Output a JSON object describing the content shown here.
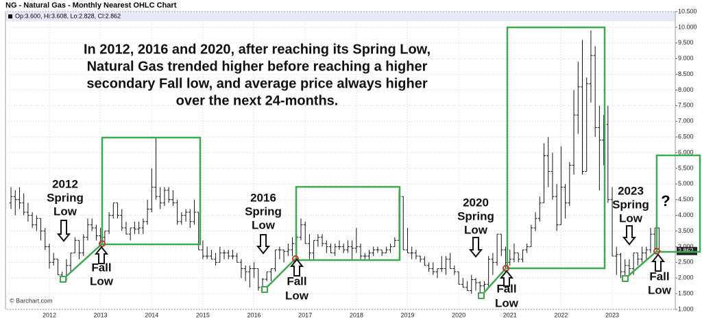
{
  "chart_data": {
    "type": "ohlc",
    "title": "NG - Natural Gas - Monthly Nearest OHLC Chart",
    "readout": "Op:3.600, Hi:3.608, Lo:2.828, Cl:2.862",
    "watermark": "© Barchart.com",
    "color": "#111111",
    "grid": true,
    "categories": [
      null,
      null,
      null,
      null,
      null,
      null,
      null,
      null,
      null,
      "2012",
      null,
      null,
      null,
      null,
      null,
      null,
      null,
      null,
      null,
      null,
      null,
      "2013",
      null,
      null,
      null,
      null,
      null,
      null,
      null,
      null,
      null,
      null,
      null,
      "2014",
      null,
      null,
      null,
      null,
      null,
      null,
      null,
      null,
      null,
      null,
      null,
      "2015",
      null,
      null,
      null,
      null,
      null,
      null,
      null,
      null,
      null,
      null,
      null,
      "2016",
      null,
      null,
      null,
      null,
      null,
      null,
      null,
      null,
      null,
      null,
      null,
      "2017",
      null,
      null,
      null,
      null,
      null,
      null,
      null,
      null,
      null,
      null,
      null,
      "2018",
      null,
      null,
      null,
      null,
      null,
      null,
      null,
      null,
      null,
      null,
      null,
      "2019",
      null,
      null,
      null,
      null,
      null,
      null,
      null,
      null,
      null,
      null,
      null,
      "2020",
      null,
      null,
      null,
      null,
      null,
      null,
      null,
      null,
      null,
      null,
      null,
      "2021",
      null,
      null,
      null,
      null,
      null,
      null,
      null,
      null,
      null,
      null,
      null,
      "2022",
      null,
      null,
      null,
      null,
      null,
      null,
      null,
      null,
      null,
      null,
      null,
      "2023",
      null,
      null,
      null,
      null,
      null,
      null,
      null,
      null,
      null,
      null,
      null
    ],
    "open": [
      4.4,
      4.6,
      4.5,
      4.4,
      4.1,
      4.0,
      3.7,
      3.9,
      3.5,
      3.0,
      2.5,
      2.6,
      2.1,
      1.95,
      2.4,
      2.8,
      3.2,
      2.8,
      3.3,
      3.7,
      3.6,
      3.35,
      3.3,
      3.5,
      4.0,
      4.4,
      4.0,
      3.6,
      3.4,
      3.6,
      3.56,
      3.6,
      3.8,
      4.2,
      4.9,
      4.6,
      4.4,
      4.8,
      4.5,
      4.4,
      3.8,
      4.0,
      4.1,
      3.8,
      4.1,
      2.9,
      2.7,
      2.7,
      2.6,
      2.5,
      2.8,
      2.8,
      2.7,
      2.7,
      2.5,
      2.3,
      2.2,
      2.3,
      2.3,
      1.7,
      1.96,
      2.2,
      2.3,
      2.9,
      2.9,
      2.85,
      2.9,
      3.1,
      3.3,
      3.7,
      3.1,
      2.8,
      3.2,
      3.3,
      3.1,
      3.0,
      2.8,
      3.0,
      3.0,
      2.9,
      3.0,
      2.95,
      3.0,
      2.7,
      2.7,
      2.8,
      2.9,
      2.9,
      2.8,
      2.9,
      3.0,
      3.2,
      4.6,
      2.9,
      2.8,
      2.8,
      2.7,
      2.6,
      2.4,
      2.3,
      2.2,
      2.3,
      2.3,
      2.6,
      2.3,
      2.2,
      1.8,
      1.7,
      1.6,
      1.95,
      1.85,
      1.75,
      1.8,
      2.6,
      2.5,
      3.4,
      2.9,
      2.5,
      2.6,
      2.8,
      2.6,
      2.9,
      3.0,
      3.6,
      3.9,
      4.4,
      5.9,
      5.4,
      4.6,
      3.7,
      4.9,
      4.4,
      5.6,
      7.2,
      8.1,
      5.4,
      8.2,
      9.1,
      6.8,
      6.4,
      6.9,
      4.5,
      2.7,
      2.75,
      2.2,
      2.4,
      2.3,
      2.8,
      2.6,
      2.8,
      2.9,
      3.4,
      3.6
    ],
    "high": [
      4.9,
      4.8,
      4.9,
      4.7,
      4.4,
      4.1,
      4.0,
      3.9,
      3.6,
      3.1,
      2.8,
      2.6,
      2.2,
      2.6,
      2.8,
      3.3,
      3.2,
      3.4,
      3.9,
      3.9,
      3.7,
      3.6,
      3.5,
      4.1,
      4.4,
      4.4,
      4.2,
      3.8,
      3.6,
      3.8,
      3.8,
      3.9,
      4.5,
      5.5,
      6.5,
      4.9,
      4.9,
      4.9,
      4.8,
      4.5,
      4.1,
      4.2,
      4.2,
      4.5,
      4.1,
      3.2,
      3.0,
      2.9,
      2.8,
      3.0,
      2.9,
      2.9,
      2.9,
      2.8,
      2.6,
      2.4,
      2.4,
      2.5,
      2.3,
      2.0,
      2.2,
      2.3,
      2.9,
      3.0,
      2.9,
      3.1,
      3.3,
      3.4,
      3.9,
      3.8,
      3.4,
      3.2,
      3.4,
      3.4,
      3.2,
      3.1,
      3.1,
      3.2,
      3.1,
      3.2,
      3.2,
      3.6,
      3.1,
      2.8,
      2.9,
      3.0,
      3.0,
      2.9,
      3.0,
      3.1,
      3.3,
      4.8,
      4.6,
      3.6,
      3.0,
      2.9,
      2.7,
      2.7,
      2.5,
      2.5,
      2.3,
      2.7,
      2.7,
      2.8,
      2.4,
      2.2,
      2.0,
      1.9,
      2.1,
      2.0,
      1.9,
      1.9,
      2.7,
      2.8,
      3.4,
      3.4,
      3.0,
      2.9,
      3.1,
      2.8,
      2.9,
      3.1,
      3.7,
      4.1,
      4.6,
      6.3,
      6.5,
      6.0,
      5.0,
      6.2,
      5.0,
      5.7,
      8.0,
      8.9,
      9.6,
      8.4,
      9.9,
      9.4,
      7.5,
      7.2,
      7.5,
      4.9,
      3.0,
      2.8,
      2.6,
      2.6,
      2.8,
      2.8,
      3.0,
      3.0,
      3.6,
      3.6,
      3.608
    ],
    "low": [
      4.2,
      4.0,
      4.2,
      4.0,
      3.8,
      3.6,
      3.5,
      3.2,
      2.9,
      2.3,
      2.4,
      2.1,
      1.9,
      1.9,
      2.2,
      2.8,
      2.6,
      2.7,
      3.2,
      3.5,
      3.2,
      3.1,
      3.1,
      3.4,
      3.9,
      3.9,
      3.5,
      3.4,
      3.2,
      3.4,
      3.4,
      3.4,
      3.7,
      4.1,
      4.5,
      4.2,
      4.3,
      4.4,
      4.3,
      3.7,
      3.7,
      3.8,
      3.6,
      3.7,
      2.9,
      2.6,
      2.6,
      2.6,
      2.4,
      2.5,
      2.6,
      2.6,
      2.6,
      2.5,
      2.0,
      1.9,
      1.7,
      2.0,
      1.6,
      1.6,
      1.9,
      1.9,
      2.2,
      2.6,
      2.5,
      2.7,
      2.7,
      2.6,
      3.2,
      3.1,
      2.6,
      2.6,
      3.0,
      3.0,
      2.8,
      2.8,
      2.7,
      2.9,
      2.8,
      2.8,
      2.6,
      2.8,
      2.6,
      2.6,
      2.6,
      2.7,
      2.8,
      2.7,
      2.8,
      2.8,
      3.0,
      3.2,
      2.9,
      2.8,
      2.6,
      2.6,
      2.5,
      2.4,
      2.2,
      2.1,
      2.0,
      2.2,
      2.1,
      2.3,
      2.1,
      1.8,
      1.7,
      1.6,
      1.5,
      1.6,
      1.45,
      1.6,
      1.7,
      2.1,
      2.4,
      2.7,
      2.3,
      2.4,
      2.5,
      2.5,
      2.5,
      2.8,
      3.0,
      3.5,
      3.8,
      4.4,
      4.9,
      4.5,
      3.5,
      3.7,
      3.9,
      4.3,
      5.3,
      6.6,
      5.3,
      5.4,
      7.6,
      6.5,
      4.8,
      5.6,
      4.4,
      2.7,
      2.1,
      2.0,
      1.95,
      2.1,
      2.1,
      2.4,
      2.5,
      2.6,
      2.8,
      2.9,
      2.828
    ],
    "close": [
      4.6,
      4.5,
      4.4,
      4.1,
      4.0,
      3.7,
      3.9,
      3.5,
      3.0,
      2.5,
      2.6,
      2.1,
      1.95,
      2.4,
      2.8,
      3.2,
      2.8,
      3.3,
      3.7,
      3.6,
      3.35,
      3.3,
      3.5,
      4.0,
      4.4,
      4.0,
      3.6,
      3.4,
      3.6,
      3.56,
      3.6,
      3.8,
      4.2,
      4.9,
      4.6,
      4.4,
      4.8,
      4.5,
      4.4,
      3.8,
      4.0,
      4.1,
      3.8,
      4.1,
      2.9,
      2.7,
      2.7,
      2.6,
      2.5,
      2.8,
      2.8,
      2.7,
      2.7,
      2.5,
      2.3,
      2.2,
      2.3,
      2.3,
      1.7,
      1.96,
      2.2,
      2.3,
      2.9,
      2.9,
      2.85,
      2.9,
      3.1,
      3.3,
      3.7,
      3.1,
      2.8,
      3.2,
      3.3,
      3.1,
      3.0,
      2.8,
      3.0,
      3.0,
      2.9,
      3.0,
      2.95,
      3.0,
      2.7,
      2.7,
      2.8,
      2.9,
      2.9,
      2.8,
      2.9,
      3.0,
      3.2,
      4.6,
      2.9,
      2.8,
      2.8,
      2.7,
      2.6,
      2.4,
      2.3,
      2.2,
      2.3,
      2.3,
      2.6,
      2.3,
      2.2,
      1.8,
      1.7,
      1.6,
      1.95,
      1.85,
      1.75,
      1.8,
      2.6,
      2.5,
      3.4,
      2.9,
      2.5,
      2.6,
      2.8,
      2.6,
      2.9,
      3.0,
      3.6,
      3.9,
      4.4,
      5.9,
      5.4,
      4.6,
      3.7,
      4.9,
      4.4,
      5.6,
      7.2,
      8.1,
      5.4,
      8.2,
      9.1,
      6.8,
      6.4,
      6.9,
      4.5,
      2.7,
      2.75,
      2.2,
      2.4,
      2.3,
      2.8,
      2.6,
      2.8,
      2.9,
      3.4,
      3.6,
      2.862
    ],
    "ylim": [
      1.0,
      10.5
    ],
    "yticks": [
      {
        "value": 1.0,
        "label": "1.000"
      },
      {
        "value": 1.5,
        "label": "1.500"
      },
      {
        "value": 2.0,
        "label": "2.000"
      },
      {
        "value": 2.5,
        "label": "2.500"
      },
      {
        "value": 3.0,
        "label": "3.000"
      },
      {
        "value": 3.5,
        "label": "3.500"
      },
      {
        "value": 4.0,
        "label": "4.000"
      },
      {
        "value": 4.5,
        "label": "4.500"
      },
      {
        "value": 5.0,
        "label": "5.000"
      },
      {
        "value": 5.5,
        "label": "5.500"
      },
      {
        "value": 6.0,
        "label": "6.000"
      },
      {
        "value": 6.5,
        "label": "6.500"
      },
      {
        "value": 7.0,
        "label": "7.000"
      },
      {
        "value": 7.5,
        "label": "7.500"
      },
      {
        "value": 8.0,
        "label": "8.000"
      },
      {
        "value": 8.5,
        "label": "8.500"
      },
      {
        "value": 9.0,
        "label": "9.000"
      },
      {
        "value": 9.5,
        "label": "9.500"
      },
      {
        "value": 10.0,
        "label": "10.000"
      },
      {
        "value": 10.5,
        "label": "10.500"
      }
    ],
    "annotations": {
      "headline": [
        "In 2012, 2016 and 2020, after reaching its Spring Low,",
        "Natural Gas trended higher before reaching a higher",
        "secondary Fall low, and average price always higher",
        "over the next 24-months."
      ],
      "spring_2012": [
        "2012",
        "Spring",
        "Low"
      ],
      "spring_2016": [
        "2016",
        "Spring",
        "Low"
      ],
      "spring_2020": [
        "2020",
        "Spring",
        "Low"
      ],
      "spring_2023": [
        "2023",
        "Spring",
        "Low"
      ],
      "fall_2012": [
        "Fall",
        "Low"
      ],
      "fall_2016": [
        "Fall",
        "Low"
      ],
      "fall_2020": [
        "Fall",
        "Low"
      ],
      "fall_2023": [
        "Fall",
        "Low"
      ],
      "question": "?"
    }
  }
}
